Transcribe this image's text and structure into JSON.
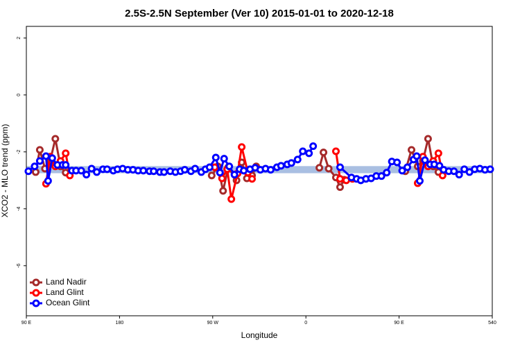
{
  "chart_data": {
    "type": "line",
    "title": "2.5S-2.5N September (Ver 10)   2015-01-01 to 2020-12-18",
    "x_label": "Longitude",
    "y_label": "XCO2 - MLO trend (ppm)",
    "xlim": [
      90,
      540
    ],
    "xticks": [
      {
        "value": 90,
        "label": "90 E"
      },
      180,
      {
        "value": 270,
        "label": "90 W"
      },
      {
        "value": 360,
        "label": "0"
      },
      {
        "value": 450,
        "label": "90 E"
      },
      540
    ],
    "ylim": [
      -7.76,
      2.41
    ],
    "yticks": [
      -6,
      -4,
      -2,
      0,
      2
    ],
    "band": {
      "lower": -2.75,
      "upper": -2.5,
      "color": "#a9bfe2"
    },
    "legend": "bottom-left",
    "series": [
      {
        "name": "Land Nadir",
        "color": "#a52a2a",
        "x": [
          99,
          103,
          108,
          113,
          118,
          123,
          128,
          200,
          269,
          275,
          280,
          285,
          293,
          298,
          303,
          308,
          312,
          340,
          373,
          377,
          382,
          389,
          393,
          397,
          430,
          456,
          462,
          468,
          473,
          478,
          483,
          488
        ],
        "values": [
          -2.71,
          -1.93,
          -2.59,
          -2.32,
          -1.54,
          -2.51,
          -2.73,
          null,
          -2.83,
          -2.51,
          -3.37,
          -2.54,
          -3.0,
          -2.37,
          -2.93,
          -2.83,
          -2.51,
          null,
          -2.56,
          -2.02,
          -2.59,
          -2.9,
          -3.24,
          -2.98,
          null,
          -2.68,
          -1.93,
          -2.51,
          -2.32,
          -1.54,
          -2.51,
          -2.71
        ]
      },
      {
        "name": "Land Glint",
        "color": "#ff0000",
        "x": [
          109,
          113,
          118,
          123,
          128,
          132,
          200,
          272,
          279,
          284,
          288,
          294,
          298,
          304,
          308,
          340,
          389,
          393,
          399,
          405,
          430,
          468,
          473,
          478,
          483,
          488,
          492
        ],
        "values": [
          -3.12,
          -2.17,
          -2.51,
          -2.32,
          -2.05,
          -2.83,
          null,
          -2.54,
          -2.93,
          -2.61,
          -3.66,
          -2.76,
          -1.83,
          -2.73,
          -2.95,
          null,
          -1.98,
          -2.95,
          -3.0,
          -2.95,
          null,
          -3.1,
          -2.17,
          -2.51,
          -2.32,
          -2.05,
          -2.83
        ]
      },
      {
        "name": "Ocean Glint",
        "color": "#0000ff",
        "x": [
          92,
          98,
          103,
          109,
          111,
          115,
          120,
          125,
          128,
          134,
          138,
          143,
          148,
          153,
          158,
          164,
          168,
          174,
          178,
          183,
          188,
          193,
          198,
          203,
          209,
          213,
          219,
          223,
          229,
          234,
          239,
          243,
          249,
          253,
          259,
          263,
          267,
          273,
          277,
          281,
          286,
          291,
          296,
          300,
          306,
          311,
          316,
          321,
          326,
          332,
          336,
          342,
          346,
          352,
          357,
          363,
          367,
          380,
          393,
          404,
          409,
          413,
          418,
          423,
          428,
          433,
          438,
          443,
          448,
          453,
          458,
          464,
          467,
          470,
          475,
          480,
          484,
          489,
          493,
          498,
          503,
          508,
          513,
          518,
          523,
          528,
          533,
          538
        ],
        "values": [
          -2.68,
          -2.51,
          -2.32,
          -2.15,
          -3.02,
          -2.22,
          -2.46,
          -2.46,
          -2.46,
          -2.66,
          -2.66,
          -2.66,
          -2.8,
          -2.59,
          -2.71,
          -2.61,
          -2.61,
          -2.66,
          -2.61,
          -2.59,
          -2.63,
          -2.63,
          -2.66,
          -2.66,
          -2.68,
          -2.68,
          -2.71,
          -2.71,
          -2.68,
          -2.71,
          -2.68,
          -2.63,
          -2.68,
          -2.59,
          -2.71,
          -2.61,
          -2.54,
          -2.2,
          -2.73,
          -2.24,
          -2.51,
          -2.8,
          -2.61,
          -2.66,
          -2.61,
          -2.56,
          -2.63,
          -2.59,
          -2.63,
          -2.54,
          -2.49,
          -2.44,
          -2.39,
          -2.27,
          -1.98,
          -2.05,
          -1.8,
          null,
          -2.54,
          -2.9,
          -2.95,
          -3.0,
          -2.95,
          -2.93,
          -2.85,
          -2.85,
          -2.73,
          -2.34,
          -2.37,
          -2.66,
          -2.54,
          -2.27,
          -2.15,
          -3.02,
          -2.29,
          -2.44,
          -2.44,
          -2.49,
          -2.63,
          -2.68,
          -2.68,
          -2.8,
          -2.61,
          -2.71,
          -2.61,
          -2.59,
          -2.63,
          -2.61
        ]
      }
    ]
  }
}
